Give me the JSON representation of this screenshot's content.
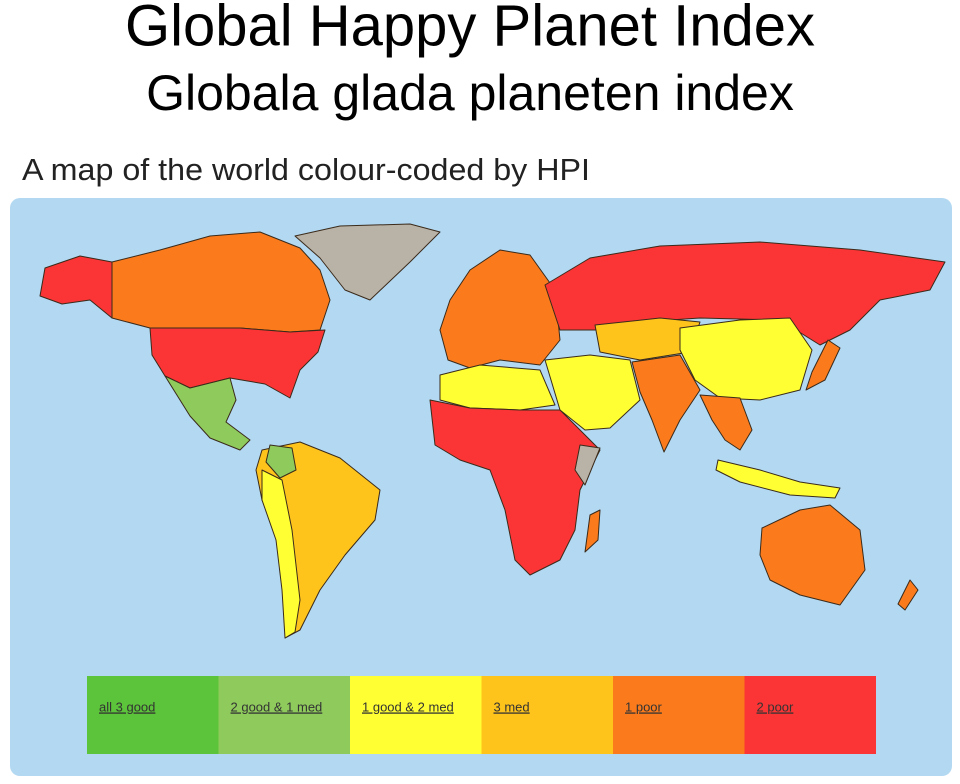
{
  "header": {
    "title": "Global Happy Planet Index",
    "subtitle": "Globala glada planeten index"
  },
  "map": {
    "title": "A map of the world colour-coded by HPI",
    "legend": [
      {
        "label": "all 3 good",
        "color": "#5cc43a"
      },
      {
        "label": "2 good & 1 med",
        "color": "#8fcb5c"
      },
      {
        "label": "1 good & 2 med",
        "color": "#ffff33"
      },
      {
        "label": "3 med",
        "color": "#ffc41c"
      },
      {
        "label": "1 poor",
        "color": "#fb7b1c"
      },
      {
        "label": "2 poor",
        "color": "#fb3535"
      }
    ]
  }
}
